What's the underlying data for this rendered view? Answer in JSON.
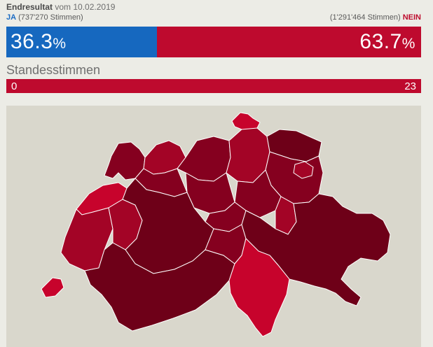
{
  "header": {
    "result_label": "Endresultat",
    "date_text": "vom 10.02.2019"
  },
  "votes": {
    "yes_label": "JA",
    "yes_count": "(737'270 Stimmen)",
    "no_count": "(1'291'464 Stimmen)",
    "no_label": "NEIN",
    "yes_percent": "36.3",
    "no_percent": "63.7",
    "percent_sign": "%",
    "yes_share": 0.363
  },
  "cantons": {
    "title": "Standesstimmen",
    "yes": "0",
    "no": "23"
  },
  "map": {
    "colors": {
      "background": "#d9d7cc",
      "darkest_no": "#6e0018",
      "dark_no": "#85001f",
      "medium_no": "#a30426",
      "light_no": "#c7032c",
      "border": "#ffffff"
    }
  }
}
